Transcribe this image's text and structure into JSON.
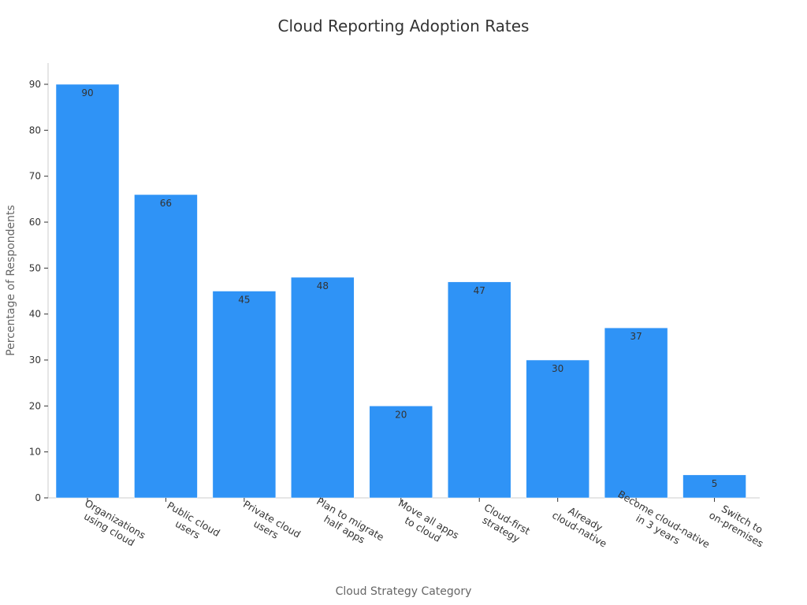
{
  "chart_data": {
    "type": "bar",
    "title": "Cloud Reporting Adoption Rates",
    "xlabel": "Cloud Strategy Category",
    "ylabel": "Percentage of Respondents",
    "ylim": [
      0,
      95
    ],
    "yticks": [
      0,
      10,
      20,
      30,
      40,
      50,
      60,
      70,
      80,
      90
    ],
    "grid": false,
    "bar_color": "#2f93f6",
    "categories": [
      [
        "Organizations",
        "using cloud"
      ],
      [
        "Public cloud",
        "users"
      ],
      [
        "Private cloud",
        "users"
      ],
      [
        "Plan to migrate",
        "half apps"
      ],
      [
        "Move all apps",
        "to cloud"
      ],
      [
        "Cloud-first",
        "strategy"
      ],
      [
        "Already",
        "cloud-native"
      ],
      [
        "Become cloud-native",
        "in 3 years"
      ],
      [
        "Switch to",
        "on-premises"
      ]
    ],
    "values": [
      90,
      66,
      45,
      48,
      20,
      47,
      30,
      37,
      5
    ]
  }
}
